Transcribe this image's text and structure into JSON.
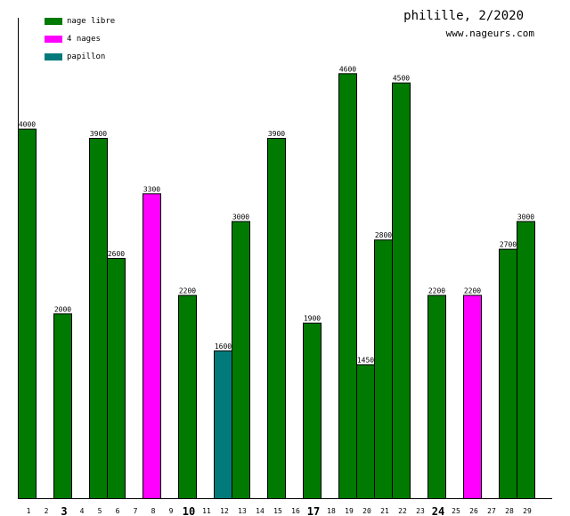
{
  "header": {
    "title": "philille, 2/2020",
    "site": "www.nageurs.com"
  },
  "legend": [
    {
      "label": "nage libre",
      "color": "#007a00"
    },
    {
      "label": "4 nages",
      "color": "#ff00ff"
    },
    {
      "label": "papillon",
      "color": "#007a7a"
    }
  ],
  "chart_data": {
    "type": "bar",
    "categories": [
      "1",
      "2",
      "3",
      "4",
      "5",
      "6",
      "7",
      "8",
      "9",
      "10",
      "11",
      "12",
      "13",
      "14",
      "15",
      "16",
      "17",
      "18",
      "19",
      "20",
      "21",
      "22",
      "23",
      "24",
      "25",
      "26",
      "27",
      "28",
      "29"
    ],
    "bold_categories": [
      "3",
      "10",
      "17",
      "24"
    ],
    "bars": [
      {
        "day": 1,
        "value": 4000,
        "stroke": "nage libre"
      },
      {
        "day": 3,
        "value": 2000,
        "stroke": "nage libre"
      },
      {
        "day": 5,
        "value": 3900,
        "stroke": "nage libre"
      },
      {
        "day": 6,
        "value": 2600,
        "stroke": "nage libre"
      },
      {
        "day": 8,
        "value": 3300,
        "stroke": "4 nages"
      },
      {
        "day": 10,
        "value": 2200,
        "stroke": "nage libre"
      },
      {
        "day": 12,
        "value": 1600,
        "stroke": "papillon"
      },
      {
        "day": 13,
        "value": 3000,
        "stroke": "nage libre"
      },
      {
        "day": 15,
        "value": 3900,
        "stroke": "nage libre"
      },
      {
        "day": 17,
        "value": 1900,
        "stroke": "nage libre"
      },
      {
        "day": 19,
        "value": 4600,
        "stroke": "nage libre"
      },
      {
        "day": 20,
        "value": 1450,
        "stroke": "nage libre"
      },
      {
        "day": 21,
        "value": 2800,
        "stroke": "nage libre"
      },
      {
        "day": 22,
        "value": 4500,
        "stroke": "nage libre"
      },
      {
        "day": 24,
        "value": 2200,
        "stroke": "nage libre"
      },
      {
        "day": 26,
        "value": 2200,
        "stroke": "4 nages"
      },
      {
        "day": 28,
        "value": 2700,
        "stroke": "nage libre"
      },
      {
        "day": 29,
        "value": 3000,
        "stroke": "nage libre"
      }
    ],
    "ylim": [
      0,
      5200
    ],
    "grid": false,
    "legend_position": "top-left"
  }
}
